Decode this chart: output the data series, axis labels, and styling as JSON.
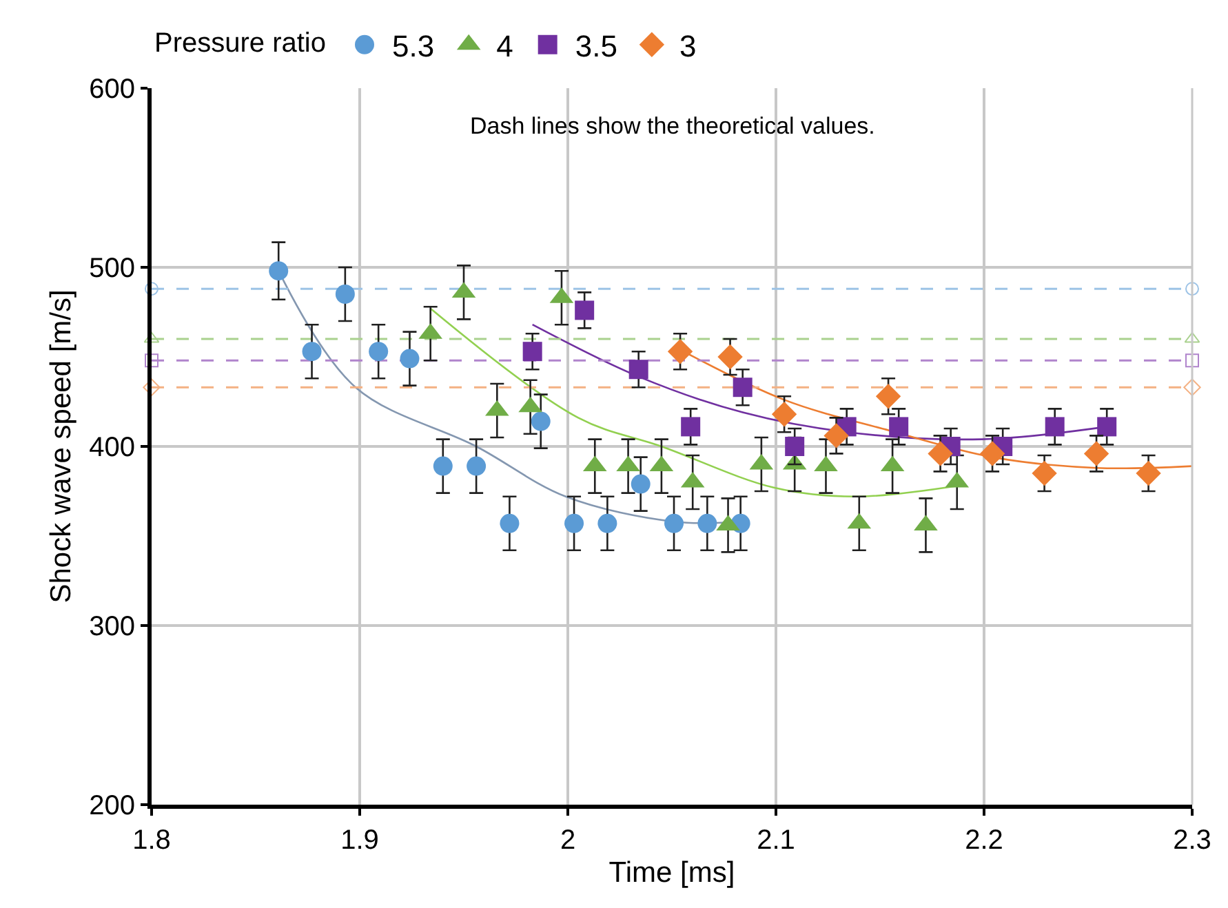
{
  "chart_data": {
    "type": "scatter",
    "xlabel": "Time [ms]",
    "ylabel": "Shock wave speed [m/s]",
    "legend_title": "Pressure ratio",
    "annotations": [
      "Dash lines show the theoretical values."
    ],
    "xlim": [
      1.8,
      2.3
    ],
    "xticks": [
      1.8,
      1.9,
      2,
      2.1,
      2.2,
      2.3
    ],
    "ylim": [
      200,
      600
    ],
    "yticks": [
      200,
      300,
      400,
      500,
      600
    ],
    "grid": true,
    "legend": "top",
    "series": [
      {
        "name": "5.3",
        "color": "#5b9bd5",
        "marker": "circle",
        "x": [
          1.861,
          1.877,
          1.893,
          1.909,
          1.924,
          1.94,
          1.956,
          1.972,
          1.987,
          2.003,
          2.019,
          2.035,
          2.051,
          2.067,
          2.083
        ],
        "values": [
          498,
          453,
          485,
          453,
          449,
          389,
          389,
          357,
          414,
          357,
          357,
          379,
          357,
          357,
          357
        ],
        "errors": [
          16,
          15,
          15,
          15,
          15,
          15,
          15,
          15,
          15,
          15,
          15,
          15,
          15,
          15,
          15
        ]
      },
      {
        "name": "4",
        "color": "#70ad47",
        "marker": "triangle",
        "x": [
          1.934,
          1.95,
          1.966,
          1.982,
          1.997,
          2.013,
          2.029,
          2.045,
          2.06,
          2.077,
          2.093,
          2.109,
          2.124,
          2.14,
          2.156,
          2.172,
          2.187
        ],
        "values": [
          463,
          486,
          420,
          422,
          483,
          389,
          389,
          389,
          380,
          356,
          390,
          390,
          389,
          357,
          389,
          356,
          380
        ],
        "errors": [
          15,
          15,
          15,
          15,
          15,
          15,
          15,
          15,
          15,
          15,
          15,
          15,
          15,
          15,
          15,
          15,
          15
        ]
      },
      {
        "name": "3.5",
        "color": "#7030a0",
        "marker": "square",
        "x": [
          1.983,
          2.008,
          2.034,
          2.059,
          2.084,
          2.109,
          2.134,
          2.159,
          2.184,
          2.209,
          2.234,
          2.259
        ],
        "values": [
          453,
          476,
          443,
          411,
          433,
          400,
          411,
          411,
          400,
          400,
          411,
          411
        ],
        "errors": [
          10,
          10,
          10,
          10,
          10,
          10,
          10,
          10,
          10,
          10,
          10,
          10
        ]
      },
      {
        "name": "3",
        "color": "#ed7d31",
        "marker": "diamond",
        "x": [
          2.054,
          2.078,
          2.104,
          2.129,
          2.154,
          2.179,
          2.204,
          2.229,
          2.254,
          2.279
        ],
        "values": [
          453,
          450,
          418,
          406,
          428,
          396,
          396,
          385,
          396,
          385
        ],
        "errors": [
          10,
          10,
          10,
          10,
          10,
          10,
          10,
          10,
          10,
          10
        ]
      },
      {
        "type": "line",
        "color": "#8497b0",
        "marker": "none",
        "line_style": "solid",
        "x": [
          1.861,
          1.898,
          1.956,
          1.999,
          2.051,
          2.083
        ],
        "values": [
          498,
          433,
          400,
          372,
          358,
          358
        ]
      },
      {
        "type": "line",
        "color": "#92d050",
        "marker": "none",
        "line_style": "solid",
        "x": [
          1.934,
          2.005,
          2.045,
          2.099,
          2.138,
          2.187
        ],
        "values": [
          477,
          416,
          400,
          377,
          372,
          378
        ]
      },
      {
        "type": "line",
        "color": "#7030a0",
        "marker": "none",
        "line_style": "solid",
        "x": [
          1.983,
          2.034,
          2.084,
          2.134,
          2.199,
          2.259
        ],
        "values": [
          468,
          439,
          419,
          408,
          404,
          411
        ]
      },
      {
        "type": "line",
        "color": "#ed7d31",
        "marker": "none",
        "line_style": "solid",
        "x": [
          2.054,
          2.104,
          2.154,
          2.204,
          2.254,
          2.3
        ],
        "values": [
          454,
          426,
          409,
          394,
          388,
          389
        ]
      },
      {
        "type": "line",
        "color": "#9dc3e6",
        "marker": "circle",
        "line_style": "dashed",
        "x": [
          1.8,
          2.3
        ],
        "values": [
          488,
          488
        ]
      },
      {
        "type": "line",
        "color": "#a9d18e",
        "marker": "triangle",
        "line_style": "dashed",
        "x": [
          1.8,
          2.3
        ],
        "values": [
          460,
          460
        ]
      },
      {
        "type": "line",
        "color": "#b084cc",
        "marker": "square",
        "line_style": "dashed",
        "x": [
          1.8,
          2.3
        ],
        "values": [
          448,
          448
        ]
      },
      {
        "type": "line",
        "color": "#f4b183",
        "marker": "diamond",
        "line_style": "dashed",
        "x": [
          1.8,
          2.3
        ],
        "values": [
          433,
          433
        ]
      }
    ]
  }
}
